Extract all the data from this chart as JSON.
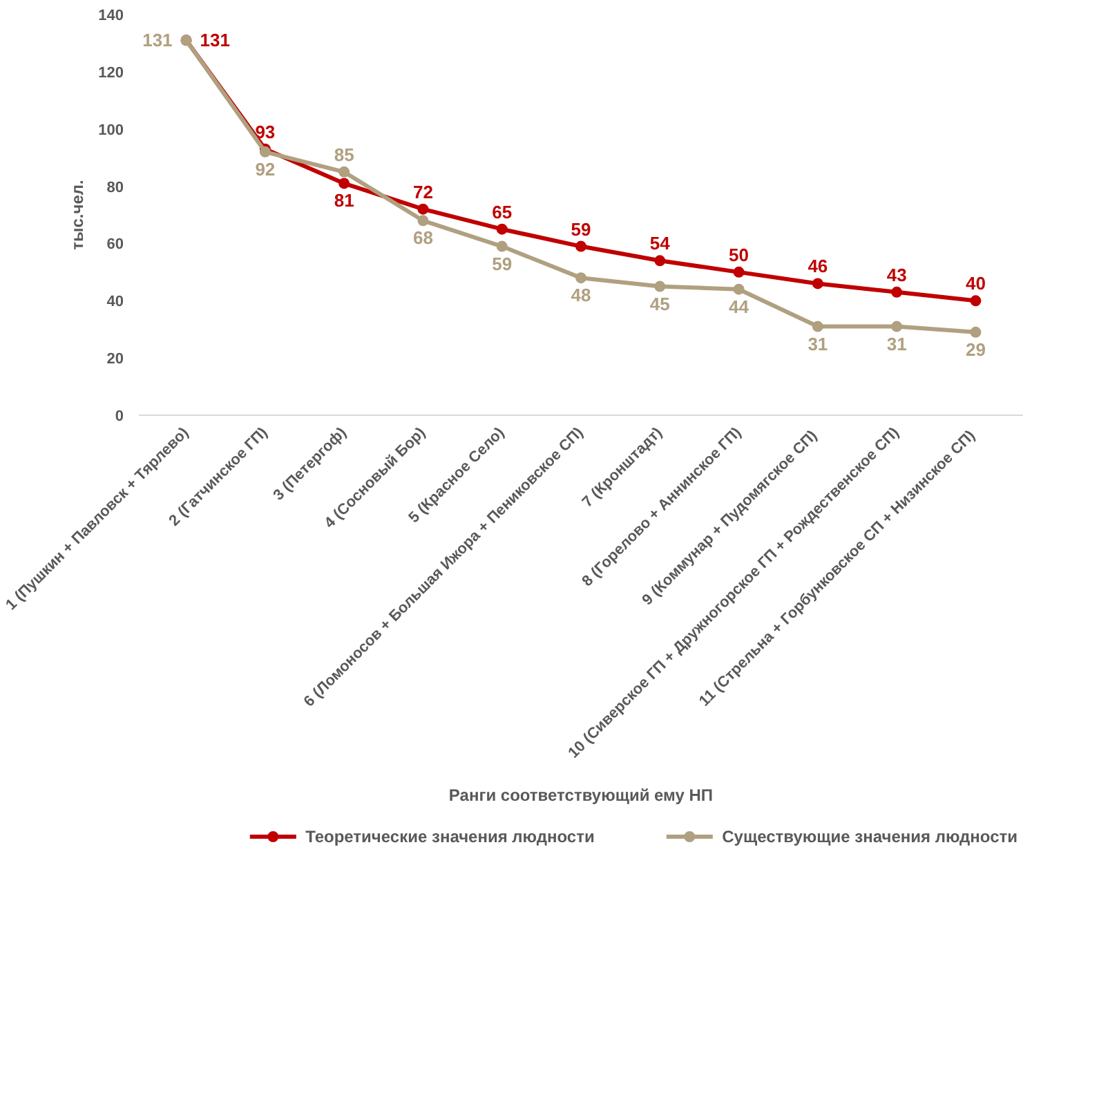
{
  "chart_data": {
    "type": "line",
    "xlabel": "Ранги соответствующий ему НП",
    "ylabel": "тыс.чел.",
    "categories": [
      "1 (Пушкин + Павловск + Тярлево)",
      "2 (Гатчинское ГП)",
      "3 (Петергоф)",
      "4 (Сосновый Бор)",
      "5 (Красное Село)",
      "6 (Ломоносов + Большая Ижора + Пениковское СП)",
      "7 (Кронштадт)",
      "8 (Горелово + Аннинское ГП)",
      "9 (Коммунар  + Пудомягское СП)",
      "10 (Сиверское ГП + Дружногорское ГП + Рождественское СП)",
      "11 (Стрельна + Горбунковское  СП + Низинское СП)"
    ],
    "series": [
      {
        "name": "Теоретические значения  людности",
        "color": "#c00000",
        "values": [
          131,
          93,
          81,
          72,
          65,
          59,
          54,
          50,
          46,
          43,
          40
        ]
      },
      {
        "name": "Существующие значения людности",
        "color": "#b0a080",
        "values": [
          131,
          92,
          85,
          68,
          59,
          48,
          45,
          44,
          31,
          31,
          29
        ]
      }
    ],
    "ylim": [
      0,
      140
    ],
    "yticks": [
      0,
      20,
      40,
      60,
      80,
      100,
      120,
      140
    ],
    "grid": false,
    "legend": "bottom",
    "marker": "circle",
    "line_style": "solid",
    "data_labels": true
  }
}
